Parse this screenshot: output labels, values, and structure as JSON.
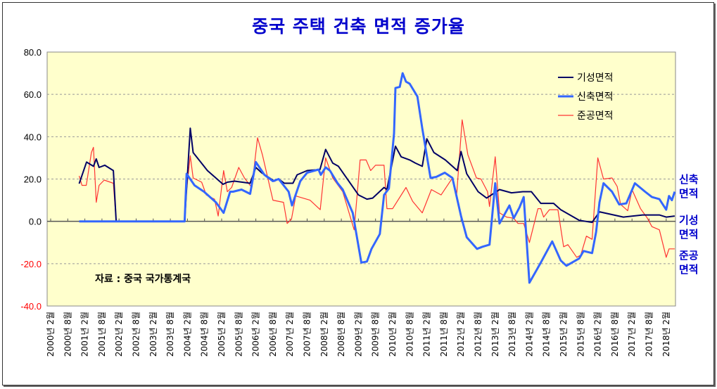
{
  "chart_data": {
    "type": "line",
    "title": "중국 주택 건축 면적 증가율",
    "source": "자료 : 중국 국가통계국",
    "xlabel": "",
    "ylabel": "",
    "ylim": [
      -40,
      80
    ],
    "yticks": [
      "80.0",
      "60.0",
      "40.0",
      "20.0",
      "0.0",
      "-20.0",
      "-40.0"
    ],
    "grid": true,
    "legend_placement": "top-right",
    "x_unit": "months since 2000년 2월",
    "xlim": [
      0,
      219
    ],
    "xtick_labels": [
      "2000년 2월",
      "2000년 8월",
      "2001년 2월",
      "2001년 8월",
      "2002년 2월",
      "2002년 8월",
      "2003년 2월",
      "2003년 8월",
      "2004년 2월",
      "2004년 8월",
      "2005년 2월",
      "2005년 8월",
      "2006년 2월",
      "2006년 8월",
      "2007년 2월",
      "2007년 8월",
      "2008년 2월",
      "2008년 8월",
      "2009년 2월",
      "2009년 8월",
      "2010년 2월",
      "2010년 8월",
      "2011년 2월",
      "2011년 8월",
      "2012년 2월",
      "2012년 8월",
      "2013년 2월",
      "2013년 8월",
      "2014년 2월",
      "2014년 8월",
      "2015년 2월",
      "2015년 8월",
      "2016년 2월",
      "2016년 8월",
      "2017년 2월",
      "2017년 8월",
      "2018년 2월"
    ],
    "series": [
      {
        "name": "기성면적",
        "color": "#000066",
        "end_label": "기성\n면적",
        "end_label_color": "#0000cc",
        "points": [
          [
            10,
            17.8
          ],
          [
            12.6,
            28
          ],
          [
            15,
            26
          ],
          [
            16,
            29.5
          ],
          [
            17,
            25.5
          ],
          [
            19,
            26.5
          ],
          [
            22,
            24
          ],
          [
            23,
            0
          ],
          [
            47,
            0
          ],
          [
            49,
            44
          ],
          [
            50,
            32.5
          ],
          [
            55,
            24
          ],
          [
            60.5,
            17.5
          ],
          [
            62,
            18.5
          ],
          [
            64.5,
            19
          ],
          [
            70,
            18
          ],
          [
            72,
            25.5
          ],
          [
            74,
            23
          ],
          [
            78.5,
            19
          ],
          [
            80,
            20
          ],
          [
            82,
            18
          ],
          [
            85,
            18
          ],
          [
            86.5,
            22
          ],
          [
            90,
            24
          ],
          [
            94.5,
            24.5
          ],
          [
            96.5,
            34
          ],
          [
            99,
            27.5
          ],
          [
            101,
            26
          ],
          [
            108,
            12.5
          ],
          [
            111,
            10.5
          ],
          [
            113,
            11
          ],
          [
            117,
            16
          ],
          [
            118,
            15
          ],
          [
            121,
            35.5
          ],
          [
            123,
            30.5
          ],
          [
            126,
            29
          ],
          [
            128,
            27.5
          ],
          [
            130.4,
            26
          ],
          [
            132,
            39
          ],
          [
            134.5,
            32.5
          ],
          [
            138.5,
            29
          ],
          [
            142.7,
            24
          ],
          [
            144,
            33
          ],
          [
            146,
            22.5
          ],
          [
            150,
            14
          ],
          [
            153,
            11
          ],
          [
            157.5,
            15
          ],
          [
            161.7,
            13.5
          ],
          [
            165.7,
            14
          ],
          [
            168.7,
            14
          ],
          [
            172,
            8.5
          ],
          [
            176.5,
            8.5
          ],
          [
            179,
            5.5
          ],
          [
            185.5,
            0.5
          ],
          [
            190,
            -0.5
          ],
          [
            192.6,
            4.5
          ],
          [
            201,
            2
          ],
          [
            207.7,
            3
          ],
          [
            213.6,
            3
          ],
          [
            216,
            2
          ],
          [
            219,
            2.5
          ]
        ]
      },
      {
        "name": "신축면적",
        "color": "#3366ff",
        "end_label": "신축\n면적",
        "end_label_color": "#0000cc",
        "points": [
          [
            10,
            0
          ],
          [
            47,
            0
          ],
          [
            47.7,
            22.5
          ],
          [
            50.5,
            17
          ],
          [
            53.8,
            14
          ],
          [
            58,
            9
          ],
          [
            60.7,
            4
          ],
          [
            63,
            14
          ],
          [
            64,
            14
          ],
          [
            67,
            15
          ],
          [
            70,
            13
          ],
          [
            72,
            28
          ],
          [
            75,
            22
          ],
          [
            78,
            19
          ],
          [
            80,
            20
          ],
          [
            83.5,
            14
          ],
          [
            84.7,
            7.5
          ],
          [
            87.6,
            19
          ],
          [
            90,
            23
          ],
          [
            94,
            24.5
          ],
          [
            94.8,
            22
          ],
          [
            96.5,
            25.5
          ],
          [
            98,
            24
          ],
          [
            100.7,
            18
          ],
          [
            102.5,
            15
          ],
          [
            106,
            4
          ],
          [
            109,
            -19.5
          ],
          [
            111,
            -19
          ],
          [
            112.6,
            -13
          ],
          [
            115.5,
            -6
          ],
          [
            117,
            12.5
          ],
          [
            118.7,
            15.5
          ],
          [
            120.5,
            41.5
          ],
          [
            121,
            63
          ],
          [
            122.5,
            63.5
          ],
          [
            123.5,
            70
          ],
          [
            124.7,
            66
          ],
          [
            126,
            65
          ],
          [
            128.7,
            59
          ],
          [
            130.4,
            44
          ],
          [
            133.3,
            20.5
          ],
          [
            135.3,
            21
          ],
          [
            138.3,
            23
          ],
          [
            141,
            20.5
          ],
          [
            144,
            2.5
          ],
          [
            146,
            -7.5
          ],
          [
            149.6,
            -13
          ],
          [
            151.5,
            -12
          ],
          [
            154,
            -11
          ],
          [
            156,
            18
          ],
          [
            157.5,
            -1
          ],
          [
            161,
            7.5
          ],
          [
            162.5,
            1.5
          ],
          [
            164.5,
            6.5
          ],
          [
            166,
            11.5
          ],
          [
            168,
            -29
          ],
          [
            172,
            -19.5
          ],
          [
            176,
            -9.5
          ],
          [
            179,
            -18.5
          ],
          [
            181,
            -21
          ],
          [
            185.5,
            -17.5
          ],
          [
            187,
            -14
          ],
          [
            190,
            -15
          ],
          [
            191.4,
            -5
          ],
          [
            192.6,
            9
          ],
          [
            194,
            18
          ],
          [
            197,
            14
          ],
          [
            199.5,
            8
          ],
          [
            202,
            8.5
          ],
          [
            205,
            18
          ],
          [
            208.6,
            14
          ],
          [
            211,
            11.5
          ],
          [
            213.6,
            10.5
          ],
          [
            216,
            5.5
          ],
          [
            217,
            12
          ],
          [
            218,
            10
          ],
          [
            219,
            14
          ]
        ]
      },
      {
        "name": "준공면적",
        "color": "#ff3333",
        "end_label": "준공\n면적",
        "end_label_color": "#0000cc",
        "points": [
          [
            10,
            21.5
          ],
          [
            11,
            17
          ],
          [
            12.5,
            17
          ],
          [
            14.3,
            32.5
          ],
          [
            15,
            35
          ],
          [
            16,
            9
          ],
          [
            17,
            17
          ],
          [
            18.8,
            19.5
          ],
          [
            22,
            18
          ],
          [
            23,
            0
          ],
          [
            47,
            0
          ],
          [
            47.7,
            15
          ],
          [
            49,
            31
          ],
          [
            50,
            20.5
          ],
          [
            53,
            18.5
          ],
          [
            54.6,
            12.5
          ],
          [
            57.5,
            10.5
          ],
          [
            58.8,
            2.5
          ],
          [
            60.7,
            24
          ],
          [
            62,
            14
          ],
          [
            63.5,
            16
          ],
          [
            66,
            25.5
          ],
          [
            68,
            20.5
          ],
          [
            70.6,
            16
          ],
          [
            72.6,
            39.5
          ],
          [
            74.3,
            31.5
          ],
          [
            78,
            10
          ],
          [
            81.7,
            9
          ],
          [
            83,
            -1
          ],
          [
            84.5,
            1
          ],
          [
            86,
            12
          ],
          [
            91,
            10
          ],
          [
            94.6,
            5.5
          ],
          [
            96.5,
            30
          ],
          [
            99,
            20.5
          ],
          [
            102.5,
            14
          ],
          [
            106.5,
            -4
          ],
          [
            108.6,
            29
          ],
          [
            110.7,
            29
          ],
          [
            112.3,
            24
          ],
          [
            114,
            26.5
          ],
          [
            117,
            26.5
          ],
          [
            118,
            6
          ],
          [
            120,
            6
          ],
          [
            124.7,
            16
          ],
          [
            127,
            9.5
          ],
          [
            130.4,
            4
          ],
          [
            133.6,
            15
          ],
          [
            137,
            12.5
          ],
          [
            141,
            20.5
          ],
          [
            142.5,
            13
          ],
          [
            144.4,
            48
          ],
          [
            146.4,
            31.5
          ],
          [
            149.4,
            20.5
          ],
          [
            151,
            20
          ],
          [
            153.3,
            14
          ],
          [
            154,
            7
          ],
          [
            156,
            30.5
          ],
          [
            157.5,
            4
          ],
          [
            160,
            2
          ],
          [
            162.5,
            1.5
          ],
          [
            164,
            -1
          ],
          [
            166,
            -1
          ],
          [
            168,
            -10
          ],
          [
            171,
            6
          ],
          [
            172,
            6
          ],
          [
            173,
            2
          ],
          [
            175,
            5.5
          ],
          [
            178,
            5.5
          ],
          [
            180,
            -12
          ],
          [
            181.5,
            -11
          ],
          [
            184.6,
            -17
          ],
          [
            186,
            -16
          ],
          [
            188,
            -7
          ],
          [
            190,
            -8.5
          ],
          [
            192,
            30
          ],
          [
            194,
            20
          ],
          [
            197,
            20.5
          ],
          [
            198.8,
            16.5
          ],
          [
            200,
            8
          ],
          [
            202.5,
            5
          ],
          [
            204,
            15
          ],
          [
            207,
            6
          ],
          [
            209.4,
            1.5
          ],
          [
            211,
            -2.5
          ],
          [
            213.6,
            -4
          ],
          [
            216,
            -17
          ],
          [
            217,
            -13
          ],
          [
            219,
            -13
          ]
        ]
      }
    ]
  }
}
